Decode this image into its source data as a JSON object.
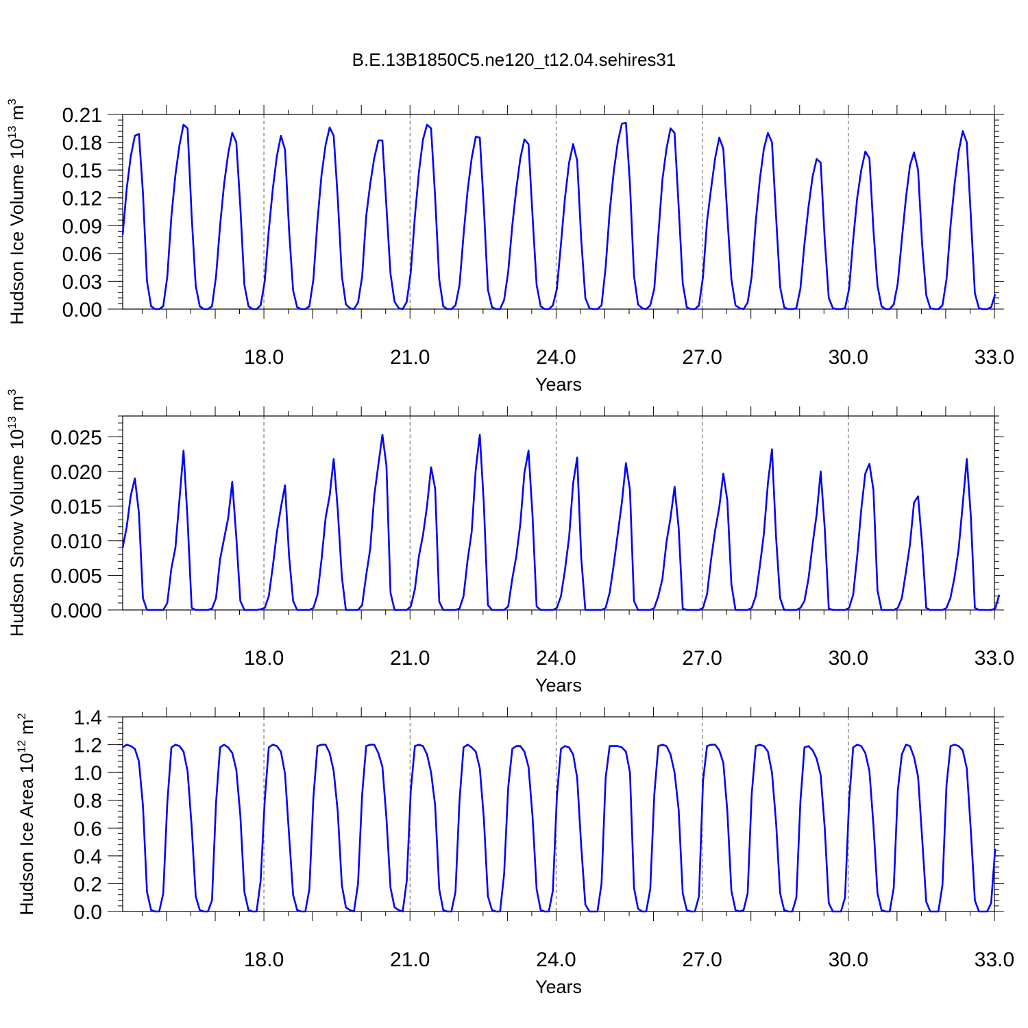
{
  "title": "B.E.13B1850C5.ne120_t12.04.sehires31",
  "line_color": "#0000ff",
  "chart_data": [
    {
      "type": "line",
      "title": "",
      "xlabel": "Years",
      "ylabel": "Hudson Ice Volume 10",
      "ylabel_exp": "13",
      "ylabel_unit": "m",
      "ylabel_unit_exp": "3",
      "xlim": [
        15.1,
        33.0
      ],
      "ylim": [
        0,
        0.21
      ],
      "xticks": [
        "18.0",
        "21.0",
        "24.0",
        "27.0",
        "30.0",
        "33.0"
      ],
      "yticks": [
        "0.00",
        "0.03",
        "0.06",
        "0.09",
        "0.12",
        "0.15",
        "0.18",
        "0.21"
      ],
      "grid_x": "dashed vertical lines at labeled years",
      "x_start": 15.1,
      "x_step": 0.08333,
      "series": [
        {
          "values": [
            0.08,
            0.13,
            0.165,
            0.187,
            0.189,
            0.125,
            0.03,
            0.003,
            0.0,
            0.0,
            0.003,
            0.035,
            0.1,
            0.145,
            0.177,
            0.199,
            0.195,
            0.1,
            0.025,
            0.003,
            0.0,
            0.0,
            0.003,
            0.035,
            0.09,
            0.135,
            0.168,
            0.19,
            0.18,
            0.11,
            0.026,
            0.003,
            0.0,
            0.0,
            0.004,
            0.03,
            0.085,
            0.13,
            0.165,
            0.187,
            0.172,
            0.085,
            0.02,
            0.002,
            0.0,
            0.0,
            0.003,
            0.032,
            0.095,
            0.145,
            0.177,
            0.196,
            0.187,
            0.12,
            0.036,
            0.005,
            0.001,
            0.0,
            0.007,
            0.035,
            0.1,
            0.135,
            0.163,
            0.182,
            0.182,
            0.11,
            0.038,
            0.008,
            0.001,
            0.0,
            0.008,
            0.04,
            0.1,
            0.148,
            0.183,
            0.199,
            0.195,
            0.12,
            0.032,
            0.003,
            0.0,
            0.0,
            0.004,
            0.026,
            0.08,
            0.128,
            0.163,
            0.186,
            0.185,
            0.11,
            0.021,
            0.002,
            0.0,
            0.0,
            0.01,
            0.04,
            0.09,
            0.13,
            0.163,
            0.183,
            0.178,
            0.1,
            0.026,
            0.003,
            0.0,
            0.0,
            0.004,
            0.022,
            0.07,
            0.12,
            0.158,
            0.178,
            0.16,
            0.075,
            0.012,
            0.001,
            0.0,
            0.0,
            0.004,
            0.045,
            0.105,
            0.148,
            0.18,
            0.2,
            0.201,
            0.135,
            0.036,
            0.005,
            0.001,
            0.0,
            0.004,
            0.022,
            0.08,
            0.14,
            0.173,
            0.195,
            0.19,
            0.11,
            0.028,
            0.002,
            0.0,
            0.0,
            0.004,
            0.035,
            0.095,
            0.13,
            0.163,
            0.185,
            0.173,
            0.1,
            0.032,
            0.004,
            0.001,
            0.0,
            0.007,
            0.035,
            0.095,
            0.14,
            0.173,
            0.19,
            0.18,
            0.1,
            0.024,
            0.002,
            0.0,
            0.0,
            0.001,
            0.022,
            0.07,
            0.11,
            0.143,
            0.162,
            0.158,
            0.075,
            0.012,
            0.001,
            0.0,
            0.0,
            0.001,
            0.022,
            0.075,
            0.12,
            0.15,
            0.17,
            0.163,
            0.085,
            0.025,
            0.003,
            0.0,
            0.0,
            0.005,
            0.028,
            0.075,
            0.12,
            0.155,
            0.169,
            0.15,
            0.07,
            0.015,
            0.001,
            0.0,
            0.0,
            0.004,
            0.032,
            0.09,
            0.135,
            0.17,
            0.192,
            0.18,
            0.1,
            0.017,
            0.001,
            0.0,
            0.0,
            0.002,
            0.016
          ]
        }
      ]
    },
    {
      "type": "line",
      "title": "",
      "xlabel": "Years",
      "ylabel": "Hudson Snow Volume 10",
      "ylabel_exp": "13",
      "ylabel_unit": "m",
      "ylabel_unit_exp": "3",
      "xlim": [
        15.1,
        33.0
      ],
      "ylim": [
        0,
        0.028
      ],
      "xticks": [
        "18.0",
        "21.0",
        "24.0",
        "27.0",
        "30.0",
        "33.0"
      ],
      "yticks": [
        "0.000",
        "0.005",
        "0.010",
        "0.015",
        "0.020",
        "0.025"
      ],
      "grid_x": "dashed vertical lines at labeled years",
      "x_start": 15.1,
      "x_step": 0.08333,
      "series": [
        {
          "values": [
            0.009,
            0.012,
            0.0165,
            0.019,
            0.014,
            0.0017,
            0.0,
            0.0,
            0.0,
            0.0,
            0.0,
            0.001,
            0.006,
            0.009,
            0.016,
            0.023,
            0.013,
            0.0003,
            0.0,
            0.0,
            0.0,
            0.0,
            0.0002,
            0.0017,
            0.0073,
            0.0103,
            0.0133,
            0.0185,
            0.0105,
            0.0013,
            0.0,
            0.0,
            0.0,
            0.0,
            0.0001,
            0.0003,
            0.002,
            0.0063,
            0.0112,
            0.0148,
            0.018,
            0.0078,
            0.0013,
            0.0,
            0.0,
            0.0,
            0.0,
            0.0003,
            0.0022,
            0.0073,
            0.0133,
            0.0165,
            0.0218,
            0.0145,
            0.0048,
            0.0,
            0.0,
            0.0,
            0.0,
            0.0007,
            0.005,
            0.0088,
            0.0165,
            0.021,
            0.0253,
            0.0208,
            0.0025,
            0.0,
            0.0,
            0.0,
            0.0,
            0.0005,
            0.003,
            0.0078,
            0.0108,
            0.015,
            0.0206,
            0.0175,
            0.0012,
            0.0,
            0.0,
            0.0,
            0.0,
            0.0002,
            0.002,
            0.0072,
            0.0113,
            0.0203,
            0.0253,
            0.0153,
            0.0007,
            0.0,
            0.0,
            0.0,
            0.0,
            0.0005,
            0.0045,
            0.0078,
            0.0125,
            0.0198,
            0.023,
            0.0135,
            0.0005,
            0.0,
            0.0,
            0.0,
            0.0,
            0.0003,
            0.002,
            0.0058,
            0.0105,
            0.0183,
            0.022,
            0.0075,
            0.0,
            0.0,
            0.0,
            0.0,
            0.0,
            0.0003,
            0.0025,
            0.0065,
            0.011,
            0.0155,
            0.0212,
            0.0173,
            0.0013,
            0.0,
            0.0,
            0.0,
            0.0,
            0.0003,
            0.002,
            0.0045,
            0.0098,
            0.0133,
            0.0178,
            0.0118,
            0.0002,
            0.0,
            0.0,
            0.0,
            0.0,
            0.0003,
            0.0023,
            0.0073,
            0.0115,
            0.0148,
            0.0197,
            0.0158,
            0.0037,
            0.0,
            0.0,
            0.0,
            0.0,
            0.0003,
            0.002,
            0.0063,
            0.011,
            0.0183,
            0.0232,
            0.0105,
            0.0017,
            0.0,
            0.0,
            0.0,
            0.0,
            0.0003,
            0.0013,
            0.0045,
            0.0095,
            0.0138,
            0.02,
            0.0118,
            0.0002,
            0.0,
            0.0,
            0.0,
            0.0,
            0.0003,
            0.0022,
            0.0078,
            0.0145,
            0.0197,
            0.0211,
            0.0173,
            0.0028,
            0.0,
            0.0,
            0.0,
            0.0,
            0.0003,
            0.0017,
            0.0055,
            0.0095,
            0.0155,
            0.0164,
            0.0095,
            0.0003,
            0.0,
            0.0,
            0.0,
            0.0,
            0.0003,
            0.0018,
            0.0048,
            0.0088,
            0.0153,
            0.0218,
            0.0135,
            0.0003,
            0.0,
            0.0,
            0.0,
            0.0,
            0.0002,
            0.0022
          ]
        }
      ]
    },
    {
      "type": "line",
      "title": "",
      "xlabel": "Years",
      "ylabel": "Hudson Ice Area 10",
      "ylabel_exp": "12",
      "ylabel_unit": "m",
      "ylabel_unit_exp": "2",
      "xlim": [
        15.1,
        33.0
      ],
      "ylim": [
        0,
        1.4
      ],
      "xticks": [
        "18.0",
        "21.0",
        "24.0",
        "27.0",
        "30.0",
        "33.0"
      ],
      "yticks": [
        "0.0",
        "0.2",
        "0.4",
        "0.6",
        "0.8",
        "1.0",
        "1.2",
        "1.4"
      ],
      "grid_x": "dashed vertical lines at labeled years",
      "x_start": 15.1,
      "x_step": 0.08333,
      "series": [
        {
          "values": [
            1.18,
            1.2,
            1.19,
            1.17,
            1.08,
            0.76,
            0.14,
            0.01,
            0.0,
            0.0,
            0.13,
            0.78,
            1.18,
            1.2,
            1.19,
            1.15,
            1.01,
            0.61,
            0.11,
            0.01,
            0.0,
            0.0,
            0.08,
            0.78,
            1.18,
            1.2,
            1.18,
            1.14,
            1.02,
            0.69,
            0.14,
            0.01,
            0.0,
            0.0,
            0.22,
            0.8,
            1.18,
            1.2,
            1.19,
            1.15,
            0.99,
            0.55,
            0.12,
            0.01,
            0.0,
            0.0,
            0.16,
            0.82,
            1.19,
            1.2,
            1.2,
            1.14,
            1.01,
            0.72,
            0.19,
            0.03,
            0.01,
            0.0,
            0.2,
            0.84,
            1.19,
            1.2,
            1.2,
            1.14,
            1.04,
            0.67,
            0.17,
            0.03,
            0.01,
            0.0,
            0.22,
            0.87,
            1.19,
            1.2,
            1.19,
            1.13,
            1.0,
            0.76,
            0.16,
            0.01,
            0.0,
            0.0,
            0.14,
            0.8,
            1.18,
            1.2,
            1.18,
            1.15,
            1.03,
            0.67,
            0.11,
            0.01,
            0.0,
            0.0,
            0.27,
            0.89,
            1.17,
            1.19,
            1.19,
            1.15,
            1.04,
            0.68,
            0.16,
            0.01,
            0.0,
            0.0,
            0.15,
            0.83,
            1.17,
            1.19,
            1.18,
            1.13,
            0.96,
            0.47,
            0.05,
            0.0,
            0.0,
            0.0,
            0.2,
            0.96,
            1.19,
            1.19,
            1.19,
            1.18,
            1.15,
            1.0,
            0.17,
            0.02,
            0.0,
            0.0,
            0.16,
            0.84,
            1.19,
            1.2,
            1.19,
            1.13,
            1.0,
            0.73,
            0.13,
            0.01,
            0.0,
            0.0,
            0.11,
            0.94,
            1.19,
            1.2,
            1.2,
            1.16,
            1.07,
            0.72,
            0.15,
            0.01,
            0.0,
            0.01,
            0.13,
            0.84,
            1.19,
            1.2,
            1.19,
            1.15,
            1.0,
            0.64,
            0.13,
            0.01,
            0.0,
            0.0,
            0.1,
            0.79,
            1.18,
            1.19,
            1.16,
            1.1,
            0.98,
            0.6,
            0.06,
            0.0,
            0.0,
            0.0,
            0.1,
            0.8,
            1.18,
            1.2,
            1.19,
            1.14,
            1.01,
            0.62,
            0.13,
            0.01,
            0.0,
            0.0,
            0.17,
            0.87,
            1.13,
            1.2,
            1.19,
            1.11,
            0.97,
            0.53,
            0.07,
            0.0,
            0.0,
            0.0,
            0.19,
            0.91,
            1.19,
            1.2,
            1.19,
            1.16,
            1.03,
            0.58,
            0.08,
            0.0,
            0.0,
            0.0,
            0.06,
            0.45
          ]
        }
      ]
    }
  ]
}
